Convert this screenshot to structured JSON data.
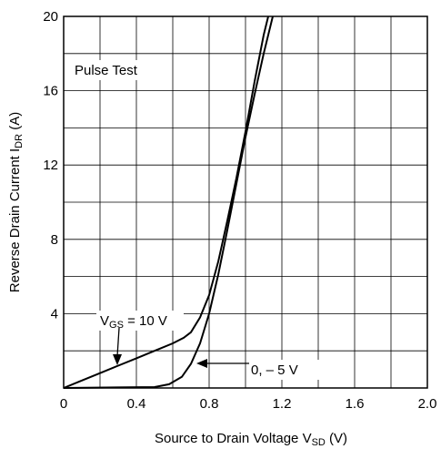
{
  "chart_data": {
    "type": "line",
    "title": "",
    "annotation": "Pulse Test",
    "xlabel": {
      "main": "Source to Drain Voltage V",
      "sub": "SD",
      "unit": " (V)"
    },
    "ylabel": {
      "main": "Reverse Drain Current I",
      "sub": "DR",
      "unit": " (A)"
    },
    "xlim": [
      0,
      2.0
    ],
    "ylim": [
      0,
      20
    ],
    "x_ticks": [
      0,
      0.4,
      0.8,
      1.2,
      1.6,
      2.0
    ],
    "x_tick_labels": [
      "0",
      "0.4",
      "0.8",
      "1.2",
      "1.6",
      "2.0"
    ],
    "y_ticks": [
      4,
      8,
      12,
      16,
      20
    ],
    "y_tick_labels": [
      "4",
      "8",
      "12",
      "16",
      "20"
    ],
    "grid": true,
    "series": [
      {
        "label": {
          "main": "V",
          "sub": "GS",
          "rest": " = 10 V"
        },
        "points": [
          [
            0,
            0
          ],
          [
            0.1,
            0.4
          ],
          [
            0.2,
            0.8
          ],
          [
            0.3,
            1.2
          ],
          [
            0.4,
            1.6
          ],
          [
            0.5,
            2.0
          ],
          [
            0.6,
            2.4
          ],
          [
            0.66,
            2.7
          ],
          [
            0.7,
            3.0
          ],
          [
            0.75,
            3.8
          ],
          [
            0.8,
            5.0
          ],
          [
            0.85,
            6.8
          ],
          [
            0.9,
            9.0
          ],
          [
            0.95,
            11.3
          ],
          [
            1.0,
            13.8
          ],
          [
            1.05,
            16.5
          ],
          [
            1.1,
            19.0
          ],
          [
            1.125,
            20.0
          ]
        ]
      },
      {
        "label": {
          "main": "0, – 5 V",
          "sub": "",
          "rest": ""
        },
        "points": [
          [
            0,
            0
          ],
          [
            0.5,
            0.05
          ],
          [
            0.58,
            0.2
          ],
          [
            0.65,
            0.6
          ],
          [
            0.7,
            1.3
          ],
          [
            0.75,
            2.4
          ],
          [
            0.8,
            4.0
          ],
          [
            0.85,
            6.1
          ],
          [
            0.9,
            8.5
          ],
          [
            0.95,
            11.0
          ],
          [
            1.0,
            13.5
          ],
          [
            1.05,
            15.8
          ],
          [
            1.1,
            18.0
          ],
          [
            1.15,
            20.0
          ]
        ]
      }
    ]
  }
}
